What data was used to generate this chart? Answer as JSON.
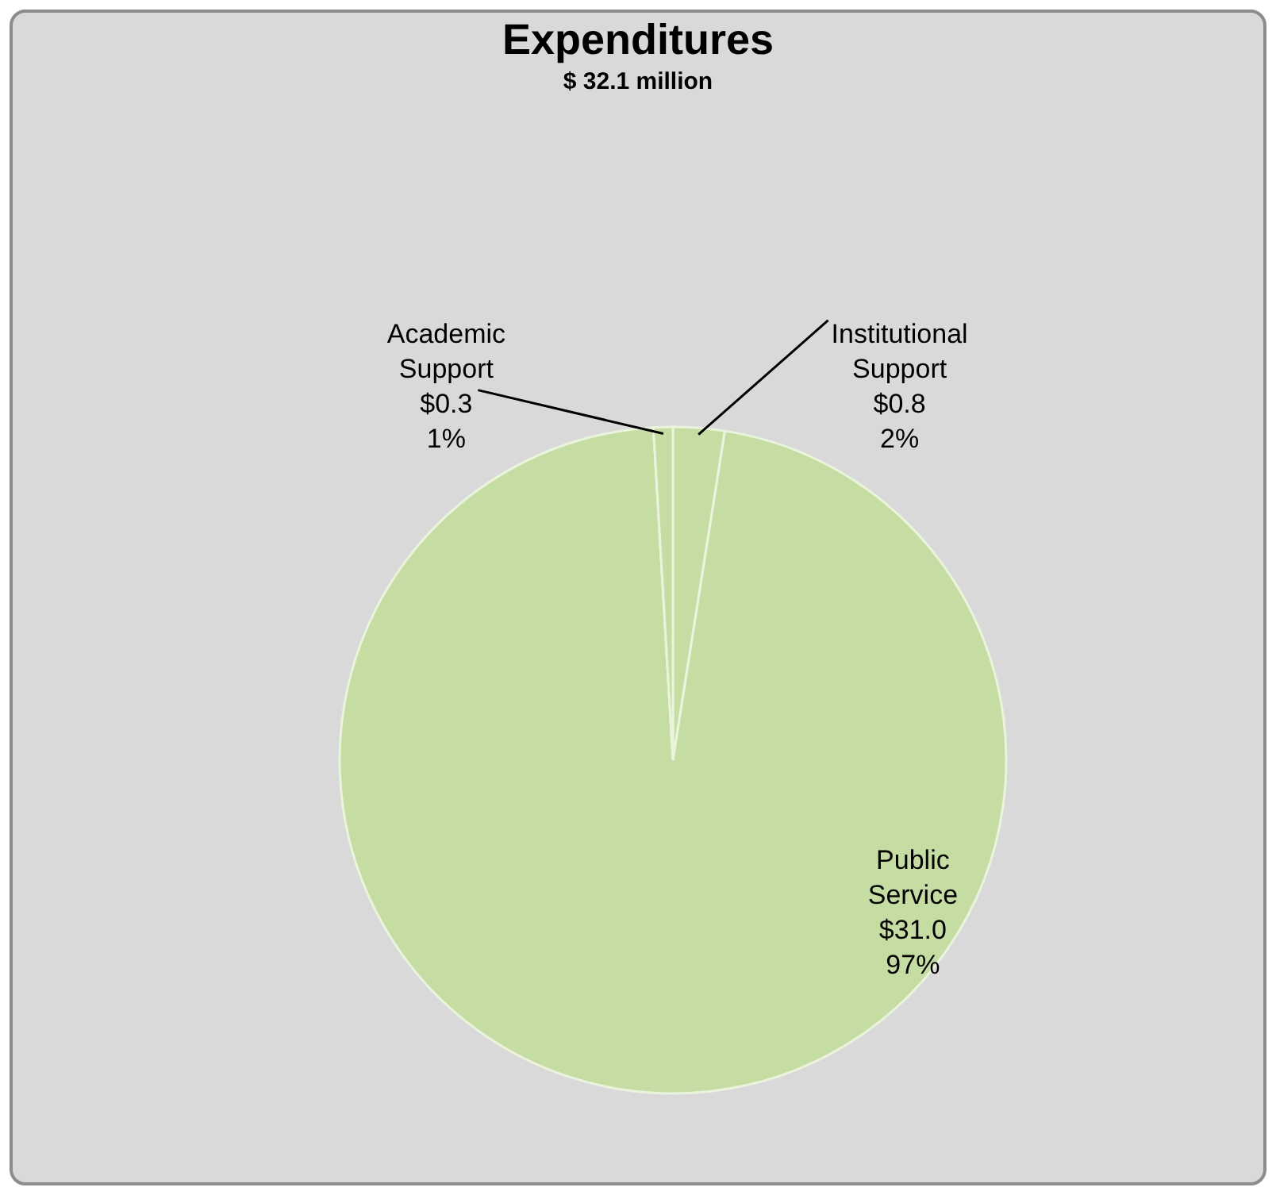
{
  "chart_data": {
    "type": "pie",
    "title": "Expenditures",
    "subtitle": "$ 32.1 million",
    "categories": [
      "Institutional Support",
      "Public Service",
      "Academic Support"
    ],
    "values": [
      0.8,
      31.0,
      0.3
    ],
    "colors": [
      "#c5dda3",
      "#c5dda3",
      "#c5dda3"
    ],
    "value_labels": [
      "$0.8 2%",
      "$31.0 97%",
      "$0.3 1%"
    ]
  }
}
